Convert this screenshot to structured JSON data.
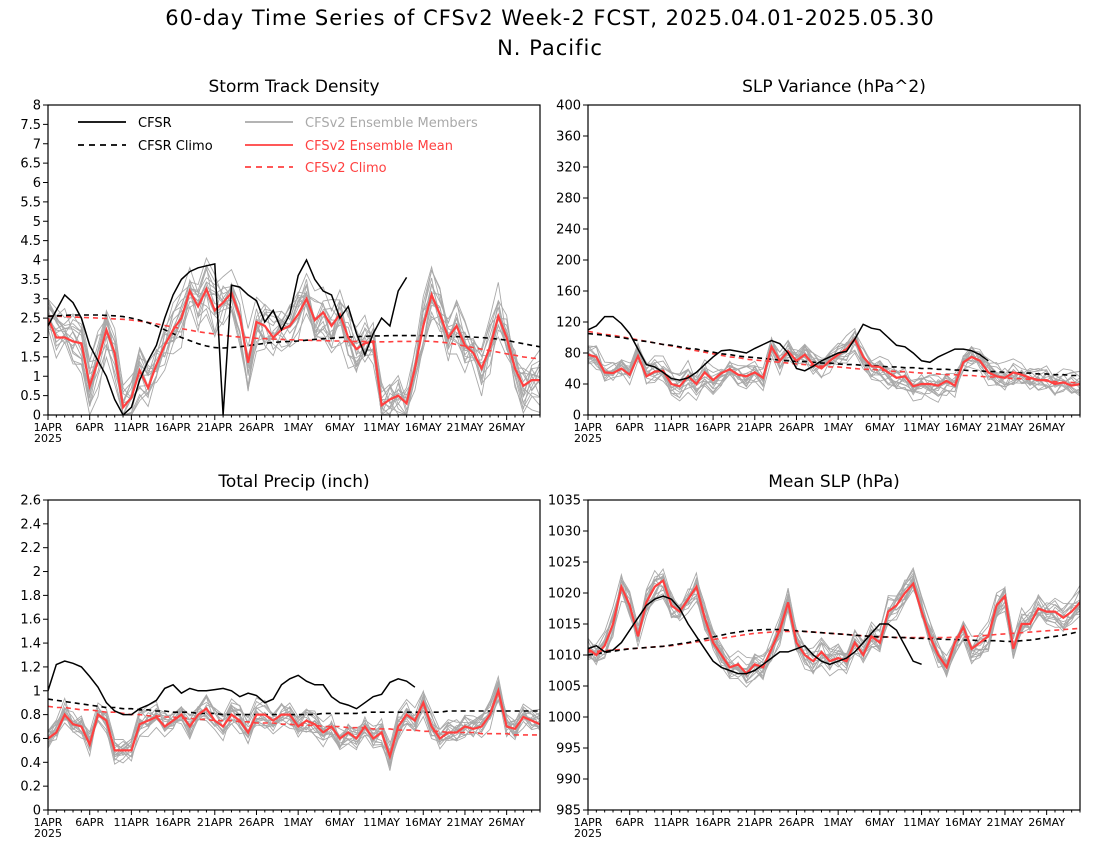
{
  "figure": {
    "title_line1": "60-day Time Series of CFSv2 Week-2 FCST, 2025.04.01-2025.05.30",
    "title_line2": "N. Pacific"
  },
  "legend": {
    "cfsr": "CFSR",
    "cfsr_climo": "CFSR Climo",
    "members": "CFSv2 Ensemble Members",
    "mean": "CFSv2 Ensemble Mean",
    "cfsv2_climo": "CFSv2 Climo"
  },
  "colors": {
    "cfsr": "#000000",
    "cfsr_climo": "#000000",
    "members": "#a9a9a9",
    "mean": "#ff4040",
    "cfsv2_climo": "#ff4040",
    "legend_members_text": "#a9a9a9",
    "legend_red_text": "#ff4040"
  },
  "chart_data": [
    {
      "id": "storm",
      "type": "line",
      "title": "Storm Track Density",
      "x_start": "2025-04-01",
      "x_days": 60,
      "x_ticks": [
        "1APR",
        "6APR",
        "11APR",
        "16APR",
        "21APR",
        "26APR",
        "1MAY",
        "6MAY",
        "11MAY",
        "16MAY",
        "21MAY",
        "26MAY"
      ],
      "x_year_label": "2025",
      "ylim": [
        0,
        8
      ],
      "y_ticks": [
        "0",
        "0.5",
        "1",
        "1.5",
        "2",
        "2.5",
        "3",
        "3.5",
        "4",
        "4.5",
        "5",
        "5.5",
        "6",
        "6.5",
        "7",
        "7.5",
        "8"
      ],
      "legend": true,
      "n_members": 16,
      "member_spread": 0.75,
      "series": {
        "cfsr": [
          2.3,
          2.7,
          3.1,
          2.9,
          2.5,
          1.8,
          1.4,
          1.0,
          0.4,
          0.0,
          0.2,
          0.9,
          1.4,
          1.8,
          2.5,
          3.1,
          3.5,
          3.7,
          3.8,
          3.85,
          3.9,
          0.0,
          3.35,
          3.3,
          3.1,
          2.95,
          2.4,
          2.7,
          2.2,
          2.6,
          3.6,
          4.0,
          3.5,
          3.2,
          3.1,
          2.5,
          2.8,
          2.1,
          1.55,
          2.1,
          2.5,
          2.3,
          3.2,
          3.55
        ],
        "cfsr_climo": [
          2.55,
          2.56,
          2.57,
          2.58,
          2.58,
          2.58,
          2.58,
          2.57,
          2.56,
          2.54,
          2.5,
          2.45,
          2.38,
          2.3,
          2.2,
          2.1,
          2.0,
          1.92,
          1.84,
          1.78,
          1.74,
          1.73,
          1.74,
          1.76,
          1.79,
          1.82,
          1.85,
          1.87,
          1.89,
          1.9,
          1.91,
          1.93,
          1.95,
          1.97,
          1.98,
          2.0,
          2.01,
          2.02,
          2.03,
          2.04,
          2.04,
          2.05,
          2.05,
          2.05,
          2.05,
          2.05,
          2.04,
          2.04,
          2.03,
          2.02,
          2.02,
          2.01,
          2.0,
          1.98,
          1.96,
          1.93,
          1.88,
          1.84,
          1.8,
          1.76
        ],
        "mean": [
          2.5,
          2.0,
          2.0,
          1.9,
          1.85,
          0.75,
          1.4,
          2.2,
          1.6,
          0.2,
          0.45,
          1.15,
          0.7,
          1.3,
          1.8,
          2.2,
          2.5,
          3.2,
          2.8,
          3.25,
          2.7,
          2.9,
          3.15,
          2.55,
          1.35,
          2.4,
          2.3,
          2.0,
          2.2,
          2.3,
          2.6,
          3.0,
          2.45,
          2.65,
          2.3,
          2.6,
          2.0,
          1.7,
          1.85,
          1.9,
          0.25,
          0.4,
          0.5,
          0.3,
          1.2,
          2.3,
          3.1,
          2.6,
          2.0,
          2.3,
          1.8,
          1.6,
          1.2,
          1.75,
          2.55,
          2.0,
          1.2,
          0.75,
          0.9,
          0.9
        ],
        "cfsv2_climo": [
          2.55,
          2.55,
          2.54,
          2.53,
          2.52,
          2.51,
          2.5,
          2.49,
          2.48,
          2.47,
          2.45,
          2.42,
          2.39,
          2.35,
          2.31,
          2.27,
          2.23,
          2.19,
          2.15,
          2.12,
          2.09,
          2.06,
          2.03,
          2.01,
          2.0,
          1.98,
          1.97,
          1.96,
          1.95,
          1.94,
          1.94,
          1.93,
          1.92,
          1.92,
          1.91,
          1.91,
          1.9,
          1.9,
          1.9,
          1.89,
          1.89,
          1.89,
          1.9,
          1.9,
          1.9,
          1.91,
          1.9,
          1.88,
          1.86,
          1.82,
          1.78,
          1.74,
          1.7,
          1.66,
          1.62,
          1.58,
          1.54,
          1.5,
          1.47,
          1.45
        ]
      }
    },
    {
      "id": "slpvar",
      "type": "line",
      "title": "SLP Variance (hPa^2)",
      "x_start": "2025-04-01",
      "x_days": 60,
      "x_ticks": [
        "1APR",
        "6APR",
        "11APR",
        "16APR",
        "21APR",
        "26APR",
        "1MAY",
        "6MAY",
        "11MAY",
        "16MAY",
        "21MAY",
        "26MAY"
      ],
      "x_year_label": "2025",
      "ylim": [
        0,
        400
      ],
      "y_ticks": [
        "0",
        "40",
        "80",
        "120",
        "160",
        "200",
        "240",
        "280",
        "320",
        "360",
        "400"
      ],
      "legend": false,
      "n_members": 16,
      "member_spread": 18,
      "series": {
        "cfsr": [
          110,
          115,
          127,
          127,
          118,
          105,
          85,
          65,
          62,
          55,
          47,
          45,
          48,
          55,
          65,
          75,
          83,
          84,
          82,
          80,
          86,
          91,
          96,
          92,
          80,
          60,
          57,
          63,
          70,
          75,
          80,
          82,
          98,
          117,
          112,
          110,
          100,
          90,
          88,
          80,
          70,
          68,
          75,
          80,
          85,
          85,
          83,
          78,
          70
        ],
        "cfsr_climo": [
          105,
          104,
          103,
          101,
          100,
          98,
          96,
          95,
          93,
          91,
          90,
          88,
          86,
          85,
          83,
          81,
          79,
          78,
          76,
          75,
          74,
          73,
          72,
          71,
          70,
          69,
          69,
          68,
          67,
          67,
          66,
          65,
          65,
          64,
          64,
          63,
          62,
          62,
          61,
          61,
          60,
          60,
          59,
          59,
          58,
          58,
          57,
          57,
          56,
          56,
          55,
          55,
          54,
          54,
          53,
          53,
          52,
          52,
          51,
          51
        ],
        "mean": [
          78,
          75,
          55,
          54,
          60,
          52,
          76,
          50,
          56,
          57,
          40,
          37,
          50,
          40,
          55,
          45,
          54,
          59,
          52,
          50,
          55,
          48,
          88,
          70,
          82,
          70,
          78,
          65,
          60,
          70,
          78,
          85,
          98,
          75,
          63,
          62,
          55,
          48,
          50,
          37,
          40,
          40,
          38,
          44,
          38,
          68,
          75,
          70,
          55,
          50,
          48,
          55,
          52,
          48,
          45,
          45,
          40,
          42,
          38,
          40
        ],
        "cfsv2_climo": [
          108,
          106,
          104,
          103,
          101,
          99,
          97,
          95,
          93,
          91,
          89,
          87,
          85,
          83,
          81,
          79,
          77,
          75,
          74,
          72,
          71,
          70,
          69,
          68,
          67,
          66,
          65,
          64,
          63,
          62,
          62,
          61,
          60,
          59,
          59,
          58,
          57,
          56,
          56,
          55,
          54,
          54,
          53,
          52,
          52,
          51,
          51,
          50,
          49,
          49,
          48,
          47,
          47,
          46,
          45,
          44,
          43,
          42,
          42,
          41
        ]
      }
    },
    {
      "id": "precip",
      "type": "line",
      "title": "Total Precip (inch)",
      "x_start": "2025-04-01",
      "x_days": 60,
      "x_ticks": [
        "1APR",
        "6APR",
        "11APR",
        "16APR",
        "21APR",
        "26APR",
        "1MAY",
        "6MAY",
        "11MAY",
        "16MAY",
        "21MAY",
        "26MAY"
      ],
      "x_year_label": "2025",
      "ylim": [
        0,
        2.6
      ],
      "y_ticks": [
        "0",
        "0.2",
        "0.4",
        "0.6",
        "0.8",
        "1",
        "1.2",
        "1.4",
        "1.6",
        "1.8",
        "2",
        "2.2",
        "2.4",
        "2.6"
      ],
      "legend": false,
      "n_members": 16,
      "member_spread": 0.12,
      "series": {
        "cfsr": [
          1.0,
          1.22,
          1.25,
          1.23,
          1.2,
          1.12,
          1.03,
          0.9,
          0.83,
          0.8,
          0.8,
          0.85,
          0.88,
          0.92,
          1.02,
          1.05,
          0.98,
          1.02,
          1.0,
          1.0,
          1.01,
          1.02,
          1.0,
          0.95,
          0.98,
          0.96,
          0.9,
          0.93,
          1.05,
          1.1,
          1.13,
          1.08,
          1.05,
          1.05,
          0.95,
          0.9,
          0.88,
          0.85,
          0.9,
          0.95,
          0.97,
          1.07,
          1.1,
          1.08,
          1.03
        ],
        "cfsr_climo": [
          0.93,
          0.92,
          0.91,
          0.9,
          0.89,
          0.88,
          0.87,
          0.86,
          0.86,
          0.85,
          0.85,
          0.84,
          0.84,
          0.83,
          0.83,
          0.82,
          0.82,
          0.82,
          0.81,
          0.81,
          0.81,
          0.8,
          0.8,
          0.8,
          0.8,
          0.8,
          0.8,
          0.8,
          0.8,
          0.8,
          0.8,
          0.8,
          0.8,
          0.81,
          0.81,
          0.81,
          0.81,
          0.81,
          0.82,
          0.82,
          0.82,
          0.82,
          0.82,
          0.82,
          0.82,
          0.82,
          0.82,
          0.82,
          0.83,
          0.83,
          0.83,
          0.83,
          0.83,
          0.83,
          0.83,
          0.83,
          0.83,
          0.83,
          0.83,
          0.83
        ],
        "mean": [
          0.6,
          0.65,
          0.8,
          0.72,
          0.7,
          0.55,
          0.8,
          0.75,
          0.5,
          0.5,
          0.5,
          0.72,
          0.75,
          0.78,
          0.7,
          0.75,
          0.8,
          0.7,
          0.8,
          0.85,
          0.75,
          0.7,
          0.8,
          0.75,
          0.65,
          0.8,
          0.8,
          0.75,
          0.8,
          0.8,
          0.7,
          0.75,
          0.72,
          0.65,
          0.7,
          0.6,
          0.65,
          0.6,
          0.7,
          0.6,
          0.65,
          0.45,
          0.7,
          0.8,
          0.75,
          0.9,
          0.7,
          0.6,
          0.65,
          0.65,
          0.7,
          0.68,
          0.7,
          0.8,
          1.0,
          0.7,
          0.68,
          0.78,
          0.75,
          0.72
        ],
        "cfsv2_climo": [
          0.87,
          0.86,
          0.86,
          0.85,
          0.84,
          0.84,
          0.83,
          0.82,
          0.82,
          0.81,
          0.8,
          0.8,
          0.79,
          0.79,
          0.78,
          0.78,
          0.77,
          0.77,
          0.76,
          0.76,
          0.75,
          0.75,
          0.75,
          0.74,
          0.74,
          0.73,
          0.73,
          0.73,
          0.72,
          0.72,
          0.71,
          0.71,
          0.71,
          0.7,
          0.7,
          0.7,
          0.69,
          0.69,
          0.69,
          0.68,
          0.68,
          0.68,
          0.67,
          0.67,
          0.67,
          0.66,
          0.66,
          0.66,
          0.65,
          0.65,
          0.65,
          0.65,
          0.64,
          0.64,
          0.64,
          0.64,
          0.63,
          0.63,
          0.63,
          0.63
        ]
      }
    },
    {
      "id": "meanslp",
      "type": "line",
      "title": "Mean SLP (hPa)",
      "x_start": "2025-04-01",
      "x_days": 60,
      "x_ticks": [
        "1APR",
        "6APR",
        "11APR",
        "16APR",
        "21APR",
        "26APR",
        "1MAY",
        "6MAY",
        "11MAY",
        "16MAY",
        "21MAY",
        "26MAY"
      ],
      "x_year_label": "2025",
      "ylim": [
        985,
        1035
      ],
      "y_ticks": [
        "985",
        "990",
        "995",
        "1000",
        "1005",
        "1010",
        "1015",
        "1020",
        "1025",
        "1030",
        "1035"
      ],
      "legend": false,
      "n_members": 16,
      "member_spread": 2.5,
      "series": {
        "cfsr": [
          1011,
          1011.5,
          1010.5,
          1010.8,
          1012,
          1014,
          1016,
          1018,
          1019,
          1019.5,
          1019,
          1017.5,
          1015,
          1013,
          1011,
          1009,
          1008,
          1007.5,
          1007,
          1007,
          1007.5,
          1008.5,
          1009.5,
          1010.5,
          1010.5,
          1011,
          1011.5,
          1010,
          1009,
          1008.5,
          1009,
          1009.5,
          1010.5,
          1012,
          1013.5,
          1015,
          1015,
          1014,
          1011.5,
          1009,
          1008.5
        ],
        "cfsr_climo": [
          1010,
          1010.2,
          1010.4,
          1010.6,
          1010.8,
          1011,
          1011.1,
          1011.2,
          1011.3,
          1011.4,
          1011.6,
          1011.8,
          1012,
          1012.3,
          1012.6,
          1012.9,
          1013.2,
          1013.5,
          1013.7,
          1013.9,
          1014,
          1014.1,
          1014.1,
          1014.1,
          1014,
          1013.9,
          1013.8,
          1013.7,
          1013.6,
          1013.5,
          1013.4,
          1013.3,
          1013.2,
          1013.1,
          1013,
          1012.9,
          1012.9,
          1012.8,
          1012.8,
          1012.7,
          1012.7,
          1012.6,
          1012.6,
          1012.5,
          1012.5,
          1012.4,
          1012.4,
          1012.3,
          1012.3,
          1012.3,
          1012.2,
          1012.2,
          1012.3,
          1012.4,
          1012.6,
          1012.8,
          1013,
          1013.2,
          1013.5,
          1013.8
        ],
        "mean": [
          1011,
          1010,
          1011.5,
          1015,
          1021,
          1018,
          1013,
          1018.5,
          1021,
          1022,
          1018,
          1017,
          1019,
          1021,
          1016,
          1012,
          1010,
          1008,
          1008.5,
          1007,
          1008.5,
          1008,
          1011,
          1014,
          1018.5,
          1012,
          1010,
          1009,
          1010.5,
          1009,
          1009.5,
          1009,
          1012,
          1010,
          1013,
          1012,
          1017,
          1018,
          1020,
          1021.5,
          1017,
          1013,
          1010,
          1008,
          1012,
          1014.5,
          1011,
          1012,
          1013,
          1018,
          1019.5,
          1011,
          1015,
          1015,
          1017.5,
          1017,
          1017,
          1016,
          1017,
          1018.5
        ],
        "cfsv2_climo": [
          1010.5,
          1010.6,
          1010.7,
          1010.8,
          1010.9,
          1011,
          1011.1,
          1011.2,
          1011.3,
          1011.4,
          1011.5,
          1011.7,
          1011.9,
          1012.1,
          1012.3,
          1012.5,
          1012.7,
          1012.9,
          1013.1,
          1013.3,
          1013.5,
          1013.6,
          1013.7,
          1013.8,
          1013.8,
          1013.8,
          1013.8,
          1013.7,
          1013.6,
          1013.5,
          1013.4,
          1013.3,
          1013.2,
          1013.1,
          1013,
          1012.9,
          1012.9,
          1012.8,
          1012.8,
          1012.8,
          1012.8,
          1012.8,
          1012.8,
          1012.8,
          1012.9,
          1012.9,
          1013,
          1013.1,
          1013.2,
          1013.3,
          1013.4,
          1013.5,
          1013.6,
          1013.7,
          1013.8,
          1013.9,
          1014,
          1014.1,
          1014.2,
          1014.3
        ]
      }
    }
  ]
}
